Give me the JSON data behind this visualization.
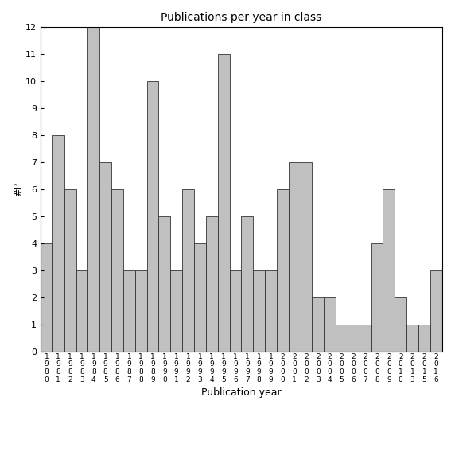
{
  "title": "Publications per year in class",
  "xlabel": "Publication year",
  "ylabel": "#P",
  "bar_color": "#c0c0c0",
  "bar_edge_color": "#333333",
  "categories": [
    "1980",
    "1981",
    "1982",
    "1983",
    "1984",
    "1985",
    "1986",
    "1987",
    "1988",
    "1989",
    "1990",
    "1991",
    "1992",
    "1993",
    "1994",
    "1995",
    "1996",
    "1997",
    "1998",
    "1999",
    "2000",
    "2001",
    "2002",
    "2003",
    "2004",
    "2005",
    "2006",
    "2007",
    "2008",
    "2009",
    "2010",
    "2013",
    "2015",
    "2016"
  ],
  "values": [
    4,
    8,
    6,
    3,
    12,
    7,
    6,
    3,
    3,
    10,
    5,
    3,
    6,
    4,
    5,
    11,
    3,
    5,
    3,
    3,
    6,
    7,
    7,
    2,
    2,
    1,
    1,
    1,
    4,
    6,
    2,
    1,
    1,
    3
  ],
  "ylim": [
    0,
    12
  ],
  "yticks": [
    0,
    1,
    2,
    3,
    4,
    5,
    6,
    7,
    8,
    9,
    10,
    11,
    12
  ],
  "figsize": [
    5.67,
    5.67
  ],
  "dpi": 100
}
